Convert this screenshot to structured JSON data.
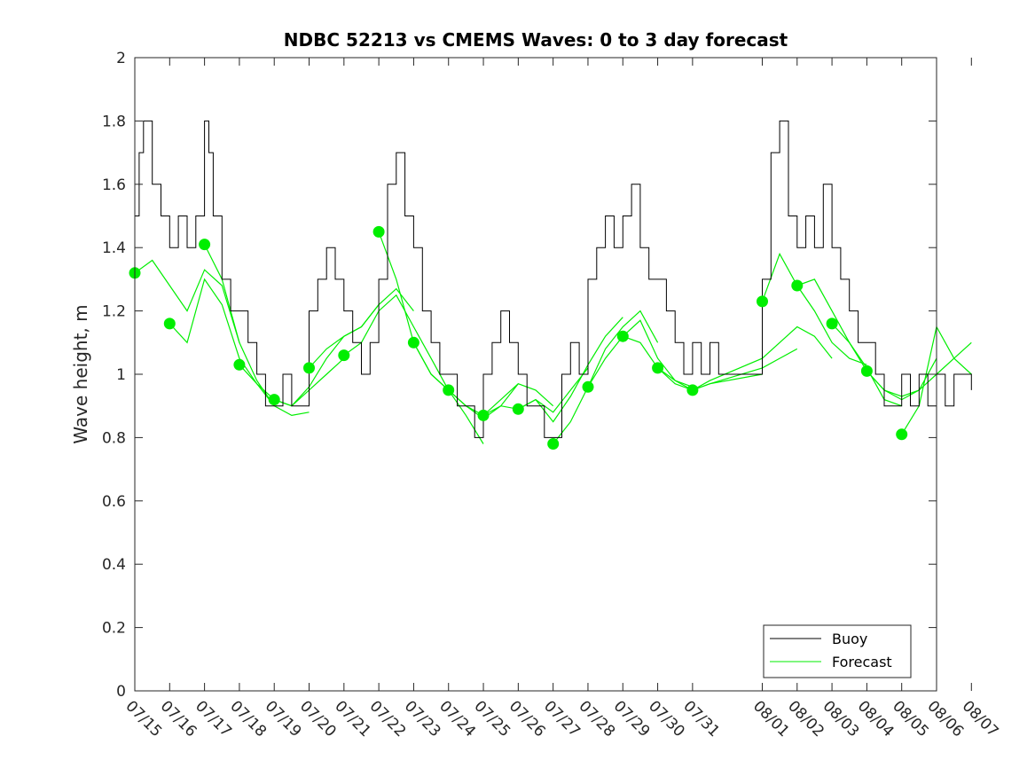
{
  "chart_data": {
    "type": "line",
    "title": "NDBC 52213 vs CMEMS Waves: 0 to 3 day forecast",
    "xlabel": "",
    "ylabel": "Wave height, m",
    "ylim": [
      0,
      2
    ],
    "yticks": [
      "0",
      "0.2",
      "0.4",
      "0.6",
      "0.8",
      "1",
      "1.2",
      "1.4",
      "1.6",
      "1.8",
      "2"
    ],
    "xticks": [
      "07/15",
      "07/16",
      "07/17",
      "07/18",
      "07/19",
      "07/20",
      "07/21",
      "07/22",
      "07/23",
      "07/24",
      "07/25",
      "07/26",
      "07/27",
      "07/28",
      "07/29",
      "07/30",
      "07/31",
      "08/01",
      "08/02",
      "08/03",
      "08/04",
      "08/05",
      "08/06",
      "08/07"
    ],
    "xlim": [
      "07/15",
      "08/07"
    ],
    "grid": false,
    "legend": {
      "position": "bottom-right",
      "entries": [
        "Buoy",
        "Forecast"
      ]
    },
    "colors": {
      "buoy": "#000000",
      "forecast": "#00ee00"
    },
    "series": [
      {
        "name": "Buoy",
        "x": [
          "07/15 00:00",
          "07/15 03:00",
          "07/15 06:00",
          "07/15 12:00",
          "07/15 18:00",
          "07/16 00:00",
          "07/16 06:00",
          "07/16 12:00",
          "07/16 18:00",
          "07/17 00:00",
          "07/17 03:00",
          "07/17 06:00",
          "07/17 12:00",
          "07/17 18:00",
          "07/18 00:00",
          "07/18 06:00",
          "07/18 12:00",
          "07/18 18:00",
          "07/19 00:00",
          "07/19 06:00",
          "07/19 12:00",
          "07/19 18:00",
          "07/20 00:00",
          "07/20 06:00",
          "07/20 12:00",
          "07/20 18:00",
          "07/21 00:00",
          "07/21 06:00",
          "07/21 12:00",
          "07/21 18:00",
          "07/22 00:00",
          "07/22 06:00",
          "07/22 12:00",
          "07/22 18:00",
          "07/23 00:00",
          "07/23 06:00",
          "07/23 12:00",
          "07/23 18:00",
          "07/24 00:00",
          "07/24 06:00",
          "07/24 12:00",
          "07/24 18:00",
          "07/25 00:00",
          "07/25 06:00",
          "07/25 12:00",
          "07/25 18:00",
          "07/26 00:00",
          "07/26 06:00",
          "07/26 12:00",
          "07/26 18:00",
          "07/27 00:00",
          "07/27 06:00",
          "07/27 12:00",
          "07/27 18:00",
          "07/28 00:00",
          "07/28 06:00",
          "07/28 12:00",
          "07/28 18:00",
          "07/29 00:00",
          "07/29 06:00",
          "07/29 12:00",
          "07/29 18:00",
          "07/30 00:00",
          "07/30 06:00",
          "07/30 12:00",
          "07/30 18:00",
          "07/31 00:00",
          "07/31 06:00",
          "07/31 12:00",
          "07/31 18:00",
          "08/01 00:00",
          "08/01 06:00",
          "08/01 12:00",
          "08/01 18:00",
          "08/02 00:00",
          "08/02 06:00",
          "08/02 12:00",
          "08/02 18:00",
          "08/03 00:00",
          "08/03 06:00",
          "08/03 12:00",
          "08/03 18:00",
          "08/04 00:00",
          "08/04 06:00",
          "08/04 12:00",
          "08/04 18:00",
          "08/05 00:00",
          "08/05 06:00",
          "08/05 12:00",
          "08/05 18:00",
          "08/06 00:00",
          "08/06 06:00",
          "08/06 12:00",
          "08/06 18:00",
          "08/07 00:00"
        ],
        "values": [
          1.5,
          1.7,
          1.8,
          1.6,
          1.5,
          1.4,
          1.5,
          1.4,
          1.5,
          1.8,
          1.7,
          1.5,
          1.3,
          1.2,
          1.2,
          1.1,
          1.0,
          0.9,
          0.9,
          1.0,
          0.9,
          0.9,
          1.2,
          1.3,
          1.4,
          1.3,
          1.2,
          1.1,
          1.0,
          1.1,
          1.3,
          1.6,
          1.7,
          1.5,
          1.4,
          1.2,
          1.1,
          1.0,
          1.0,
          0.9,
          0.9,
          0.8,
          1.0,
          1.1,
          1.2,
          1.1,
          1.0,
          0.9,
          0.9,
          0.8,
          0.8,
          1.0,
          1.1,
          1.0,
          1.3,
          1.4,
          1.5,
          1.4,
          1.5,
          1.6,
          1.4,
          1.3,
          1.3,
          1.2,
          1.1,
          1.0,
          1.1,
          1.0,
          1.1,
          1.0,
          1.3,
          1.7,
          1.8,
          1.5,
          1.4,
          1.5,
          1.4,
          1.6,
          1.4,
          1.3,
          1.2,
          1.1,
          1.1,
          1.0,
          0.9,
          0.9,
          1.0,
          0.9,
          1.0,
          0.9,
          1.0,
          0.9,
          1.0,
          1.0,
          0.95
        ]
      },
      {
        "name": "Forecast",
        "markers": [
          {
            "x": "07/15",
            "y": 1.32
          },
          {
            "x": "07/16",
            "y": 1.16
          },
          {
            "x": "07/17",
            "y": 1.41
          },
          {
            "x": "07/18",
            "y": 1.03
          },
          {
            "x": "07/19",
            "y": 0.92
          },
          {
            "x": "07/20",
            "y": 1.02
          },
          {
            "x": "07/21",
            "y": 1.06
          },
          {
            "x": "07/22",
            "y": 1.45
          },
          {
            "x": "07/23",
            "y": 1.1
          },
          {
            "x": "07/24",
            "y": 0.95
          },
          {
            "x": "07/25",
            "y": 0.87
          },
          {
            "x": "07/26",
            "y": 0.89
          },
          {
            "x": "07/27",
            "y": 0.78
          },
          {
            "x": "07/28",
            "y": 0.96
          },
          {
            "x": "07/29",
            "y": 1.12
          },
          {
            "x": "07/30",
            "y": 1.02
          },
          {
            "x": "07/31",
            "y": 0.95
          },
          {
            "x": "08/01",
            "y": 1.23
          },
          {
            "x": "08/02",
            "y": 1.28
          },
          {
            "x": "08/03",
            "y": 1.16
          },
          {
            "x": "08/04",
            "y": 1.01
          },
          {
            "x": "08/05",
            "y": 0.81
          }
        ],
        "traces": [
          {
            "x": [
              "07/15",
              "07/15 12:00",
              "07/16",
              "07/16 12:00",
              "07/17",
              "07/17 12:00",
              "07/18"
            ],
            "values": [
              1.32,
              1.36,
              1.28,
              1.2,
              1.33,
              1.28,
              1.1
            ]
          },
          {
            "x": [
              "07/16",
              "07/16 12:00",
              "07/17",
              "07/17 12:00",
              "07/18",
              "07/18 12:00",
              "07/19"
            ],
            "values": [
              1.16,
              1.1,
              1.3,
              1.22,
              1.05,
              0.97,
              0.9
            ]
          },
          {
            "x": [
              "07/17",
              "07/17 12:00",
              "07/18",
              "07/18 12:00",
              "07/19",
              "07/19 12:00",
              "07/20"
            ],
            "values": [
              1.41,
              1.3,
              1.1,
              0.98,
              0.9,
              0.87,
              0.88
            ]
          },
          {
            "x": [
              "07/18",
              "07/18 12:00",
              "07/19",
              "07/19 12:00",
              "07/20",
              "07/20 12:00",
              "07/21"
            ],
            "values": [
              1.03,
              0.97,
              0.92,
              0.9,
              0.95,
              1.0,
              1.05
            ]
          },
          {
            "x": [
              "07/19",
              "07/19 12:00",
              "07/20",
              "07/20 12:00",
              "07/21",
              "07/21 12:00",
              "07/22"
            ],
            "values": [
              0.92,
              0.9,
              0.96,
              1.05,
              1.12,
              1.15,
              1.22
            ]
          },
          {
            "x": [
              "07/20",
              "07/20 12:00",
              "07/21",
              "07/21 12:00",
              "07/22",
              "07/22 12:00",
              "07/23"
            ],
            "values": [
              1.02,
              1.08,
              1.12,
              1.15,
              1.22,
              1.27,
              1.2
            ]
          },
          {
            "x": [
              "07/21",
              "07/21 12:00",
              "07/22",
              "07/22 12:00",
              "07/23",
              "07/23 12:00",
              "07/24"
            ],
            "values": [
              1.06,
              1.1,
              1.2,
              1.25,
              1.15,
              1.05,
              0.95
            ]
          },
          {
            "x": [
              "07/22",
              "07/22 12:00",
              "07/23",
              "07/23 12:00",
              "07/24",
              "07/24 12:00",
              "07/25"
            ],
            "values": [
              1.45,
              1.3,
              1.1,
              1.0,
              0.95,
              0.87,
              0.78
            ]
          },
          {
            "x": [
              "07/23",
              "07/23 12:00",
              "07/24",
              "07/24 12:00",
              "07/25",
              "07/25 12:00",
              "07/26"
            ],
            "values": [
              1.1,
              1.0,
              0.95,
              0.9,
              0.86,
              0.9,
              0.97
            ]
          },
          {
            "x": [
              "07/24",
              "07/24 12:00",
              "07/25",
              "07/25 12:00",
              "07/26",
              "07/26 12:00",
              "07/27"
            ],
            "values": [
              0.95,
              0.9,
              0.87,
              0.92,
              0.97,
              0.95,
              0.9
            ]
          },
          {
            "x": [
              "07/25",
              "07/25 12:00",
              "07/26",
              "07/26 12:00",
              "07/27",
              "07/27 12:00",
              "07/28"
            ],
            "values": [
              0.87,
              0.9,
              0.89,
              0.92,
              0.88,
              0.95,
              1.02
            ]
          },
          {
            "x": [
              "07/26",
              "07/26 12:00",
              "07/27",
              "07/27 12:00",
              "07/28",
              "07/28 12:00",
              "07/29"
            ],
            "values": [
              0.89,
              0.92,
              0.85,
              0.93,
              1.03,
              1.12,
              1.18
            ]
          },
          {
            "x": [
              "07/27",
              "07/27 12:00",
              "07/28",
              "07/28 12:00",
              "07/29",
              "07/29 12:00",
              "07/30"
            ],
            "values": [
              0.78,
              0.85,
              0.96,
              1.08,
              1.15,
              1.2,
              1.1
            ]
          },
          {
            "x": [
              "07/28",
              "07/28 12:00",
              "07/29",
              "07/29 12:00",
              "07/30",
              "07/30 12:00",
              "07/31"
            ],
            "values": [
              0.96,
              1.05,
              1.12,
              1.17,
              1.05,
              0.98,
              0.96
            ]
          },
          {
            "x": [
              "07/29",
              "07/29 12:00",
              "07/30",
              "07/30 12:00",
              "07/31",
              "07/31 12:00",
              "08/01"
            ],
            "values": [
              1.12,
              1.1,
              1.02,
              0.97,
              0.95,
              0.97,
              1.0
            ]
          },
          {
            "x": [
              "07/30",
              "07/30 12:00",
              "07/31",
              "07/31 12:00",
              "08/01",
              "08/01 12:00",
              "08/02"
            ],
            "values": [
              1.02,
              0.98,
              0.95,
              0.97,
              1.02,
              1.05,
              1.08
            ]
          },
          {
            "x": [
              "07/31",
              "07/31 12:00",
              "08/01",
              "08/01 12:00",
              "08/02",
              "08/02 12:00",
              "08/03"
            ],
            "values": [
              0.95,
              0.98,
              1.05,
              1.1,
              1.15,
              1.12,
              1.05
            ]
          },
          {
            "x": [
              "08/01",
              "08/01 12:00",
              "08/02",
              "08/02 12:00",
              "08/03",
              "08/03 12:00",
              "08/04"
            ],
            "values": [
              1.23,
              1.38,
              1.28,
              1.2,
              1.1,
              1.05,
              1.03
            ]
          },
          {
            "x": [
              "08/02",
              "08/02 12:00",
              "08/03",
              "08/03 12:00",
              "08/04",
              "08/04 12:00",
              "08/05"
            ],
            "values": [
              1.28,
              1.3,
              1.2,
              1.1,
              1.02,
              0.92,
              0.9
            ]
          },
          {
            "x": [
              "08/03",
              "08/03 12:00",
              "08/04",
              "08/04 12:00",
              "08/05",
              "08/05 12:00",
              "08/06"
            ],
            "values": [
              1.16,
              1.1,
              1.01,
              0.95,
              0.93,
              0.95,
              1.05
            ]
          },
          {
            "x": [
              "08/04",
              "08/04 12:00",
              "08/05",
              "08/05 12:00",
              "08/06",
              "08/06 12:00",
              "08/07"
            ],
            "values": [
              1.01,
              0.95,
              0.92,
              0.95,
              1.0,
              1.05,
              1.0
            ]
          },
          {
            "x": [
              "08/05",
              "08/05 12:00",
              "08/06",
              "08/06 12:00",
              "08/07"
            ],
            "values": [
              0.81,
              0.9,
              1.15,
              1.05,
              1.1
            ]
          }
        ]
      }
    ]
  }
}
